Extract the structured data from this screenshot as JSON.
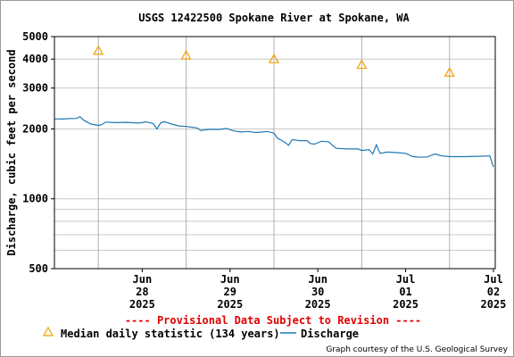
{
  "chart_data": {
    "type": "line",
    "title": "USGS 12422500 Spokane River at Spokane, WA",
    "ylabel": "Discharge, cubic feet per second",
    "xlabel": "",
    "y_scale": "log",
    "ylim": [
      500,
      5000
    ],
    "y_tick_labels": [
      "500",
      "1000",
      "2000",
      "3000",
      "4000",
      "5000"
    ],
    "y_tick_values": [
      500,
      1000,
      2000,
      3000,
      4000,
      5000
    ],
    "x_ticks": [
      {
        "date": "2025-06-28",
        "lines": [
          "Jun",
          "28",
          "2025"
        ]
      },
      {
        "date": "2025-06-29",
        "lines": [
          "Jun",
          "29",
          "2025"
        ]
      },
      {
        "date": "2025-06-30",
        "lines": [
          "Jun",
          "30",
          "2025"
        ]
      },
      {
        "date": "2025-07-01",
        "lines": [
          "Jul",
          "01",
          "2025"
        ]
      },
      {
        "date": "2025-07-02",
        "lines": [
          "Jul",
          "02",
          "2025"
        ]
      }
    ],
    "xlim": [
      "2025-06-27T12:00",
      "2025-07-02T12:30"
    ],
    "grid": true,
    "series": [
      {
        "name": "Discharge",
        "color": "#1f77b4",
        "marker": "line",
        "points": [
          [
            "2025-06-27T12:00",
            2210
          ],
          [
            "2025-06-27T14:00",
            2205
          ],
          [
            "2025-06-27T16:00",
            2215
          ],
          [
            "2025-06-27T18:00",
            2220
          ],
          [
            "2025-06-27T19:00",
            2260
          ],
          [
            "2025-06-27T20:00",
            2180
          ],
          [
            "2025-06-27T22:00",
            2100
          ],
          [
            "2025-06-28T00:00",
            2070
          ],
          [
            "2025-06-28T01:00",
            2090
          ],
          [
            "2025-06-28T02:00",
            2140
          ],
          [
            "2025-06-28T05:00",
            2130
          ],
          [
            "2025-06-28T08:00",
            2135
          ],
          [
            "2025-06-28T11:00",
            2120
          ],
          [
            "2025-06-28T13:00",
            2145
          ],
          [
            "2025-06-28T15:00",
            2110
          ],
          [
            "2025-06-28T16:00",
            2000
          ],
          [
            "2025-06-28T17:00",
            2120
          ],
          [
            "2025-06-28T18:00",
            2150
          ],
          [
            "2025-06-28T20:00",
            2100
          ],
          [
            "2025-06-28T22:00",
            2060
          ],
          [
            "2025-06-29T00:00",
            2050
          ],
          [
            "2025-06-29T03:00",
            2020
          ],
          [
            "2025-06-29T04:00",
            1970
          ],
          [
            "2025-06-29T06:00",
            1990
          ],
          [
            "2025-06-29T09:00",
            1990
          ],
          [
            "2025-06-29T11:00",
            2010
          ],
          [
            "2025-06-29T13:00",
            1960
          ],
          [
            "2025-06-29T15:00",
            1940
          ],
          [
            "2025-06-29T17:00",
            1950
          ],
          [
            "2025-06-29T19:00",
            1930
          ],
          [
            "2025-06-29T21:00",
            1940
          ],
          [
            "2025-06-29T22:00",
            1950
          ],
          [
            "2025-06-30T00:00",
            1920
          ],
          [
            "2025-06-30T01:00",
            1820
          ],
          [
            "2025-06-30T02:00",
            1790
          ],
          [
            "2025-06-30T03:00",
            1750
          ],
          [
            "2025-06-30T04:00",
            1700
          ],
          [
            "2025-06-30T05:00",
            1800
          ],
          [
            "2025-06-30T07:00",
            1780
          ],
          [
            "2025-06-30T09:00",
            1780
          ],
          [
            "2025-06-30T10:00",
            1730
          ],
          [
            "2025-06-30T11:00",
            1720
          ],
          [
            "2025-06-30T13:00",
            1770
          ],
          [
            "2025-06-30T15:00",
            1760
          ],
          [
            "2025-06-30T16:00",
            1700
          ],
          [
            "2025-06-30T17:00",
            1650
          ],
          [
            "2025-06-30T20:00",
            1640
          ],
          [
            "2025-06-30T23:00",
            1640
          ],
          [
            "2025-07-01T00:00",
            1615
          ],
          [
            "2025-07-01T02:00",
            1630
          ],
          [
            "2025-07-01T03:00",
            1560
          ],
          [
            "2025-07-01T04:00",
            1710
          ],
          [
            "2025-07-01T05:00",
            1570
          ],
          [
            "2025-07-01T07:00",
            1590
          ],
          [
            "2025-07-01T10:00",
            1580
          ],
          [
            "2025-07-01T12:00",
            1570
          ],
          [
            "2025-07-01T14:00",
            1520
          ],
          [
            "2025-07-01T16:00",
            1510
          ],
          [
            "2025-07-01T18:00",
            1515
          ],
          [
            "2025-07-01T19:00",
            1540
          ],
          [
            "2025-07-01T20:00",
            1560
          ],
          [
            "2025-07-01T22:00",
            1530
          ],
          [
            "2025-07-02T00:00",
            1520
          ],
          [
            "2025-07-02T04:00",
            1520
          ],
          [
            "2025-07-02T08:00",
            1525
          ],
          [
            "2025-07-02T11:00",
            1530
          ],
          [
            "2025-07-02T12:00",
            1370
          ]
        ]
      },
      {
        "name": "Median daily statistic (134 years)",
        "color": "#f0a000",
        "marker": "triangle",
        "points": [
          [
            "2025-06-28T00:00",
            4350
          ],
          [
            "2025-06-29T00:00",
            4150
          ],
          [
            "2025-06-30T00:00",
            4000
          ],
          [
            "2025-07-01T00:00",
            3780
          ],
          [
            "2025-07-02T00:00",
            3500
          ]
        ]
      }
    ],
    "legend": [
      {
        "label": "Median daily statistic (134 years)",
        "marker": "triangle",
        "color": "#f0a000"
      },
      {
        "label": "Discharge",
        "marker": "line",
        "color": "#1f77b4"
      }
    ],
    "legend_position": "bottom",
    "annotation": "---- Provisional Data Subject to Revision ----",
    "credit": "Graph courtesy of the U.S. Geological Survey"
  }
}
